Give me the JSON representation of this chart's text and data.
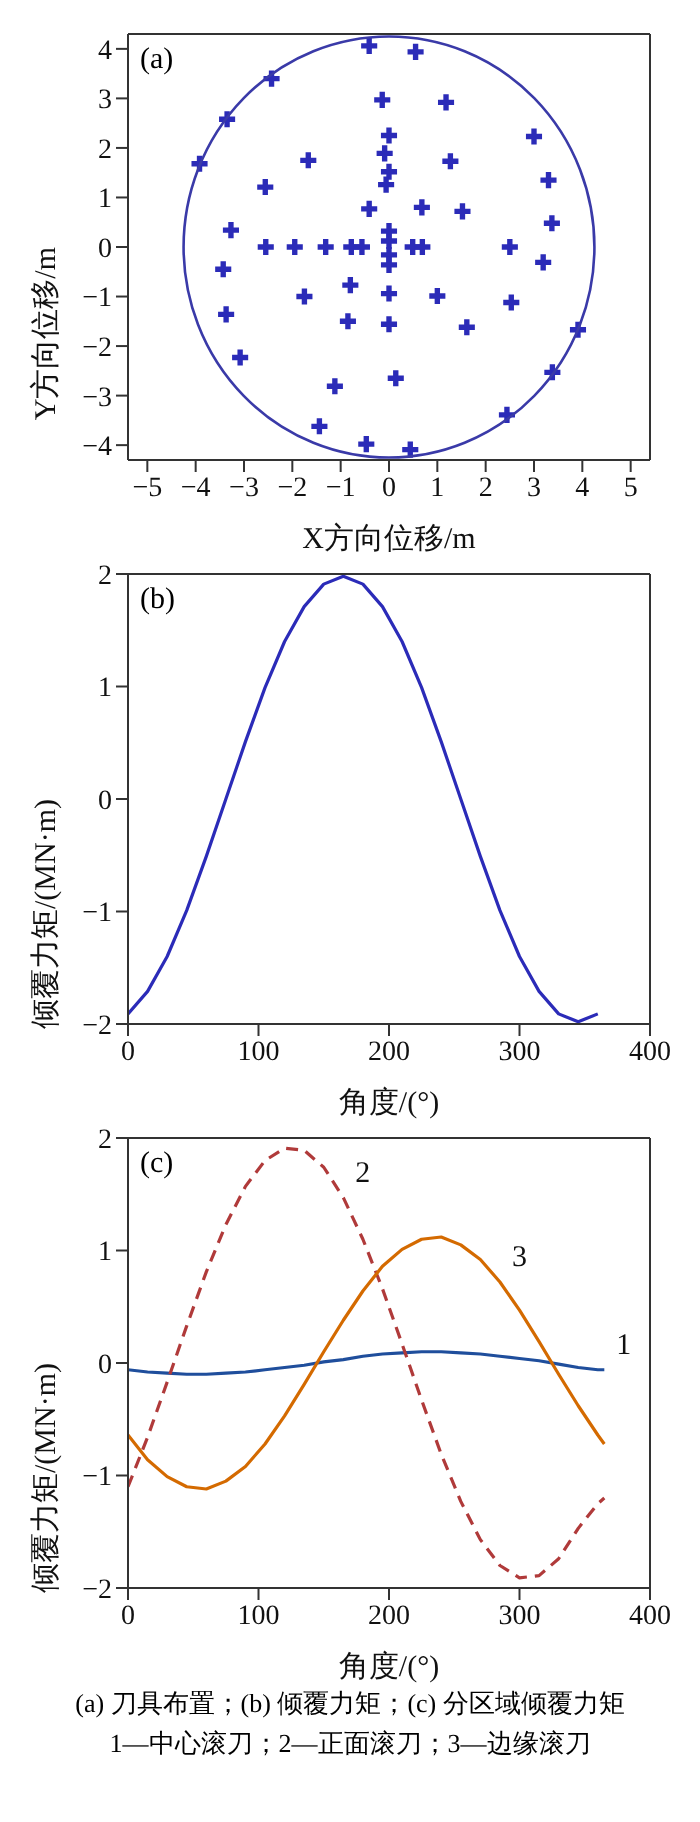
{
  "chart_data": [
    {
      "type": "scatter",
      "title": "(a)",
      "xlabel": "X方向位移/m",
      "ylabel": "Y方向位移/m",
      "xlim": [
        -5.4,
        5.4
      ],
      "ylim": [
        -4.3,
        4.3
      ],
      "xticks": [
        -5,
        -4,
        -3,
        -2,
        -1,
        0,
        1,
        2,
        3,
        4,
        5
      ],
      "yticks": [
        -4,
        -3,
        -2,
        -1,
        0,
        1,
        2,
        3,
        4
      ],
      "grid": false,
      "legend": false,
      "marker": "cross",
      "series": [
        {
          "color": "#2b2bb8",
          "x": [
            -0.41,
            0.55,
            -2.43,
            -0.14,
            1.18,
            -3.35,
            0,
            3.0,
            -0.09,
            -1.67,
            1.27,
            0,
            -3.92,
            -0.06,
            -2.56,
            3.3,
            -0.41,
            0.68,
            1.52,
            -3.27,
            3.37,
            0,
            0,
            -2.55,
            -1.95,
            -1.31,
            -0.78,
            -0.56,
            0.49,
            0.69,
            2.5,
            0,
            0,
            -3.43,
            3.19,
            -0.8,
            -1.75,
            0,
            1.0,
            2.53,
            -3.37,
            -0.85,
            0,
            1.61,
            3.91,
            -3.08,
            0.14,
            -1.12,
            3.38,
            -1.44,
            2.44,
            -0.47,
            0.44
          ],
          "values": [
            4.06,
            3.94,
            3.4,
            2.97,
            2.92,
            2.58,
            2.25,
            2.23,
            1.89,
            1.75,
            1.73,
            1.52,
            1.68,
            1.26,
            1.21,
            1.35,
            0.77,
            0.8,
            0.72,
            0.34,
            0.48,
            0.32,
            0.12,
            0,
            0,
            0,
            0,
            0,
            0,
            0,
            0,
            -0.16,
            -0.36,
            -0.45,
            -0.31,
            -0.77,
            -1.0,
            -0.94,
            -0.99,
            -1.12,
            -1.36,
            -1.5,
            -1.56,
            -1.62,
            -1.67,
            -2.23,
            -2.65,
            -2.81,
            -2.53,
            -3.62,
            -3.39,
            -3.98,
            -4.09
          ]
        }
      ]
    },
    {
      "type": "line",
      "title": "(b)",
      "xlabel": "角度/(°)",
      "ylabel": "倾覆力矩/(MN·m)",
      "xlim": [
        0,
        400
      ],
      "ylim": [
        -2,
        2
      ],
      "xticks": [
        0,
        100,
        200,
        300,
        400
      ],
      "yticks": [
        -2,
        -1,
        0,
        1,
        2
      ],
      "grid": false,
      "legend": false,
      "marker": "none",
      "x": [
        0,
        15,
        30,
        45,
        60,
        75,
        90,
        105,
        120,
        135,
        150,
        165,
        180,
        195,
        210,
        225,
        240,
        255,
        270,
        285,
        300,
        315,
        330,
        345,
        360
      ],
      "series": [
        {
          "color": "#2b2bb8",
          "line_style": "solid",
          "values": [
            -1.91,
            -1.71,
            -1.4,
            -0.99,
            -0.51,
            0,
            0.51,
            0.99,
            1.4,
            1.71,
            1.91,
            1.98,
            1.91,
            1.71,
            1.4,
            0.99,
            0.51,
            0,
            -0.51,
            -0.99,
            -1.4,
            -1.71,
            -1.91,
            -1.98,
            -1.91
          ]
        }
      ]
    },
    {
      "type": "line",
      "title": "(c)",
      "xlabel": "角度/(°)",
      "ylabel": "倾覆力矩/(MN·m)",
      "xlim": [
        0,
        400
      ],
      "ylim": [
        -2,
        2
      ],
      "xticks": [
        0,
        100,
        200,
        300,
        400
      ],
      "yticks": [
        -2,
        -1,
        0,
        1,
        2
      ],
      "grid": false,
      "legend": false,
      "marker": "none",
      "x": [
        0,
        15,
        30,
        45,
        60,
        75,
        90,
        105,
        120,
        135,
        150,
        165,
        180,
        195,
        210,
        225,
        240,
        255,
        270,
        285,
        300,
        315,
        330,
        345,
        360,
        365
      ],
      "series": [
        {
          "name": "1",
          "color": "#1f4e9c",
          "line_style": "solid",
          "values": [
            -0.06,
            -0.08,
            -0.09,
            -0.1,
            -0.1,
            -0.09,
            -0.08,
            -0.06,
            -0.04,
            -0.02,
            0.01,
            0.03,
            0.06,
            0.08,
            0.09,
            0.1,
            0.1,
            0.09,
            0.08,
            0.06,
            0.04,
            0.02,
            -0.01,
            -0.04,
            -0.06,
            -0.06
          ]
        },
        {
          "name": "2",
          "color": "#b03a3a",
          "line_style": "dashed",
          "values": [
            -1.1,
            -0.66,
            -0.17,
            0.33,
            0.81,
            1.23,
            1.57,
            1.8,
            1.91,
            1.89,
            1.74,
            1.47,
            1.1,
            0.66,
            0.17,
            -0.33,
            -0.81,
            -1.23,
            -1.57,
            -1.8,
            -1.91,
            -1.89,
            -1.74,
            -1.47,
            -1.25,
            -1.2
          ]
        },
        {
          "name": "3",
          "color": "#d46a00",
          "line_style": "solid",
          "values": [
            -0.64,
            -0.86,
            -1.01,
            -1.1,
            -1.12,
            -1.05,
            -0.92,
            -0.72,
            -0.47,
            -0.19,
            0.1,
            0.38,
            0.64,
            0.86,
            1.01,
            1.1,
            1.12,
            1.05,
            0.92,
            0.72,
            0.47,
            0.19,
            -0.1,
            -0.38,
            -0.64,
            -0.72
          ]
        }
      ],
      "annotations": [
        "(a) 刀具布置；(b) 倾覆力矩；(c) 分区域倾覆力矩",
        "1—中心滚刀；2—正面滚刀；3—边缘滚刀"
      ]
    }
  ]
}
